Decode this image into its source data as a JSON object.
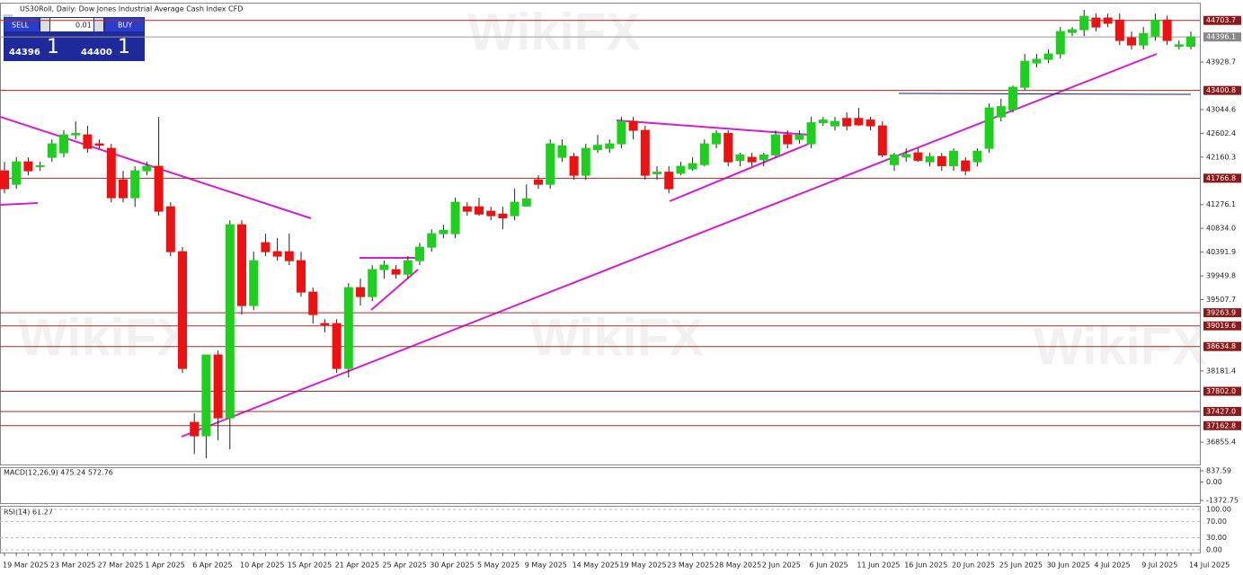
{
  "chart_data": {
    "type": "candlestick",
    "title": "US30Roll, Daily: Dow Jones Industrial Average Cash Index CFD",
    "watermark": "WikiFX",
    "trade_panel": {
      "sell": "SELL",
      "buy": "BUY",
      "lot": "0.01",
      "sell_big": "44396",
      "sell_small": "1",
      "buy_big": "44400",
      "buy_small": "1"
    },
    "up_color": "#1ed01e",
    "down_color": "#ee1111",
    "ylim": [
      36440,
      45000
    ],
    "yticks": [
      43928.7,
      43044.6,
      42602.4,
      42160.3,
      41276.1,
      {
        "value": 40834,
        "label": "40834.0"
      },
      40391.9,
      39949.8,
      39507.7,
      38181.4,
      36855.4
    ],
    "levels": [
      44703.7,
      43400.8,
      41766.8,
      39263.9,
      39019.6,
      38634.8,
      {
        "value": 37802,
        "label": "37802.0"
      },
      {
        "value": 37427,
        "label": "37427.0"
      },
      37162.8
    ],
    "bid": 44396.1,
    "categories": [
      "19 Mar 2025",
      null,
      null,
      null,
      "23 Mar 2025",
      null,
      null,
      null,
      "27 Mar 2025",
      null,
      null,
      null,
      "1 Apr 2025",
      null,
      null,
      null,
      "6 Apr 2025",
      null,
      null,
      null,
      "10 Apr 2025",
      null,
      null,
      null,
      "15 Apr 2025",
      null,
      null,
      null,
      "21 Apr 2025",
      null,
      null,
      null,
      "25 Apr 2025",
      null,
      null,
      null,
      "30 Apr 2025",
      null,
      null,
      null,
      "5 May 2025",
      null,
      null,
      null,
      "9 May 2025",
      null,
      null,
      null,
      "14 May 2025",
      null,
      null,
      null,
      "19 May 2025",
      null,
      null,
      null,
      "23 May 2025",
      null,
      null,
      null,
      "28 May 2025",
      null,
      null,
      null,
      "2 Jun 2025",
      null,
      null,
      null,
      "6 Jun 2025",
      null,
      null,
      null,
      "11 Jun 2025",
      null,
      null,
      null,
      "16 Jun 2025",
      null,
      null,
      null,
      "20 Jun 2025",
      null,
      null,
      null,
      "25 Jun 2025",
      null,
      null,
      null,
      "30 Jun 2025",
      null,
      null,
      null,
      "4 Jul 2025",
      null,
      null,
      null,
      "9 Jul 2025",
      null,
      null,
      null,
      "14 Jul 2025"
    ],
    "ohlc": [
      [
        41905,
        42072,
        41487,
        41571
      ],
      [
        41654,
        42156,
        41571,
        42072
      ],
      [
        42072,
        42156,
        41822,
        41905
      ],
      [
        41989,
        42072,
        41905,
        42000
      ],
      [
        42156,
        42490,
        42072,
        42407
      ],
      [
        42240,
        42658,
        42156,
        42574
      ],
      [
        42574,
        42825,
        42490,
        42600
      ],
      [
        42574,
        42741,
        42240,
        42323
      ],
      [
        42407,
        42490,
        42323,
        42380
      ],
      [
        42323,
        42407,
        41320,
        41404
      ],
      [
        41738,
        41905,
        41320,
        41404
      ],
      [
        41404,
        41989,
        41236,
        41905
      ],
      [
        41905,
        42072,
        41822,
        41989
      ],
      [
        41989,
        42908,
        41069,
        41153
      ],
      [
        41236,
        41320,
        40317,
        40400
      ],
      [
        40400,
        40484,
        38143,
        38227
      ],
      [
        37224,
        37391,
        36638,
        36973
      ],
      [
        36973,
        38478,
        36555,
        38478
      ],
      [
        38478,
        38561,
        36889,
        37307
      ],
      [
        37307,
        40986,
        36722,
        40902
      ],
      [
        40902,
        40986,
        39230,
        39397
      ],
      [
        39397,
        40400,
        39314,
        40233
      ],
      [
        40568,
        40735,
        40317,
        40400
      ],
      [
        40400,
        40651,
        40233,
        40317
      ],
      [
        40400,
        40735,
        40150,
        40233
      ],
      [
        40233,
        40400,
        39564,
        39648
      ],
      [
        39648,
        39732,
        39063,
        39230
      ],
      [
        39063,
        39146,
        38896,
        39040
      ],
      [
        39063,
        39146,
        38143,
        38227
      ],
      [
        38227,
        39815,
        38060,
        39732
      ],
      [
        39732,
        39899,
        39397,
        39564
      ],
      [
        39564,
        40150,
        39481,
        40066
      ],
      [
        40066,
        40233,
        39899,
        40150
      ],
      [
        40066,
        40150,
        39899,
        39982
      ],
      [
        39982,
        40317,
        39899,
        40233
      ],
      [
        40233,
        40568,
        40150,
        40484
      ],
      [
        40484,
        40818,
        40400,
        40735
      ],
      [
        40735,
        40902,
        40651,
        40800
      ],
      [
        40735,
        41404,
        40651,
        41320
      ],
      [
        41236,
        41320,
        41069,
        41153
      ],
      [
        41236,
        41404,
        41069,
        41100
      ],
      [
        41153,
        41236,
        40986,
        41069
      ],
      [
        41100,
        41236,
        40818,
        41030
      ],
      [
        41069,
        41571,
        40986,
        41320
      ],
      [
        41250,
        41654,
        41236,
        41380
      ],
      [
        41738,
        41822,
        41571,
        41654
      ],
      [
        41654,
        42490,
        41571,
        42407
      ],
      [
        42156,
        42490,
        42072,
        42370
      ],
      [
        42170,
        42240,
        41738,
        41822
      ],
      [
        41822,
        42407,
        41738,
        42323
      ],
      [
        42300,
        42574,
        42240,
        42380
      ],
      [
        42323,
        42490,
        42240,
        42407
      ],
      [
        42407,
        42908,
        42323,
        42825
      ],
      [
        42825,
        42908,
        42490,
        42658
      ],
      [
        42658,
        42741,
        41738,
        41822
      ],
      [
        41850,
        41989,
        41738,
        41880
      ],
      [
        41880,
        41989,
        41487,
        41571
      ],
      [
        41860,
        42072,
        41822,
        41989
      ],
      [
        41940,
        42156,
        41905,
        42040
      ],
      [
        42020,
        42490,
        41989,
        42407
      ],
      [
        42407,
        42658,
        42323,
        42600
      ],
      [
        42600,
        42658,
        41989,
        42072
      ],
      [
        42100,
        42240,
        41989,
        42200
      ],
      [
        42156,
        42240,
        41989,
        42072
      ],
      [
        42110,
        42240,
        41989,
        42200
      ],
      [
        42200,
        42658,
        42156,
        42574
      ],
      [
        42574,
        42658,
        42323,
        42407
      ],
      [
        42490,
        42658,
        42407,
        42574
      ],
      [
        42407,
        42908,
        42323,
        42800
      ],
      [
        42800,
        42908,
        42741,
        42850
      ],
      [
        42741,
        42908,
        42658,
        42825
      ],
      [
        42880,
        42992,
        42658,
        42741
      ],
      [
        42880,
        43076,
        42741,
        42760
      ],
      [
        42850,
        42908,
        42658,
        42741
      ],
      [
        42741,
        42825,
        42156,
        42200
      ],
      [
        42020,
        42240,
        41905,
        42200
      ],
      [
        42160,
        42323,
        42072,
        42210
      ],
      [
        42240,
        42323,
        42072,
        42100
      ],
      [
        42072,
        42240,
        41989,
        42170
      ],
      [
        42170,
        42240,
        41905,
        42000
      ],
      [
        42000,
        42323,
        41905,
        42270
      ],
      [
        42090,
        42156,
        41822,
        41905
      ],
      [
        42072,
        42323,
        41989,
        42270
      ],
      [
        42323,
        43159,
        42240,
        43076
      ],
      [
        42908,
        43243,
        42825,
        43100
      ],
      [
        43040,
        43494,
        42992,
        43460
      ],
      [
        43460,
        44079,
        43410,
        43944
      ],
      [
        43912,
        44079,
        43828,
        43980
      ],
      [
        43980,
        44162,
        43912,
        44079
      ],
      [
        44079,
        44580,
        43995,
        44497
      ],
      [
        44480,
        44580,
        44413,
        44530
      ],
      [
        44530,
        44900,
        44413,
        44780
      ],
      [
        44748,
        44831,
        44497,
        44580
      ],
      [
        44748,
        44831,
        44580,
        44650
      ],
      [
        44710,
        44831,
        44246,
        44330
      ],
      [
        44380,
        44497,
        44162,
        44246
      ],
      [
        44246,
        44580,
        44162,
        44460
      ],
      [
        44413,
        44831,
        44330,
        44710
      ],
      [
        44710,
        44790,
        44246,
        44330
      ],
      [
        44220,
        44330,
        44162,
        44250
      ],
      [
        44220,
        44497,
        44162,
        44396
      ]
    ],
    "macd": {
      "label": "MACD(12,26,9) 475.24 572.76",
      "ylim": [
        -1372.75,
        837.59
      ],
      "yticks": [
        837.59,
        {
          "value": 0,
          "label": "0.00"
        },
        -1372.75
      ]
    },
    "rsi": {
      "label": "RSI(14) 61.27",
      "ylim": [
        0,
        100
      ],
      "yticks": [
        {
          "value": 100,
          "label": "100.00"
        },
        {
          "value": 70,
          "label": "70.00"
        },
        {
          "value": 30,
          "label": "30.00"
        },
        {
          "value": 0,
          "label": "0.00"
        }
      ]
    }
  }
}
